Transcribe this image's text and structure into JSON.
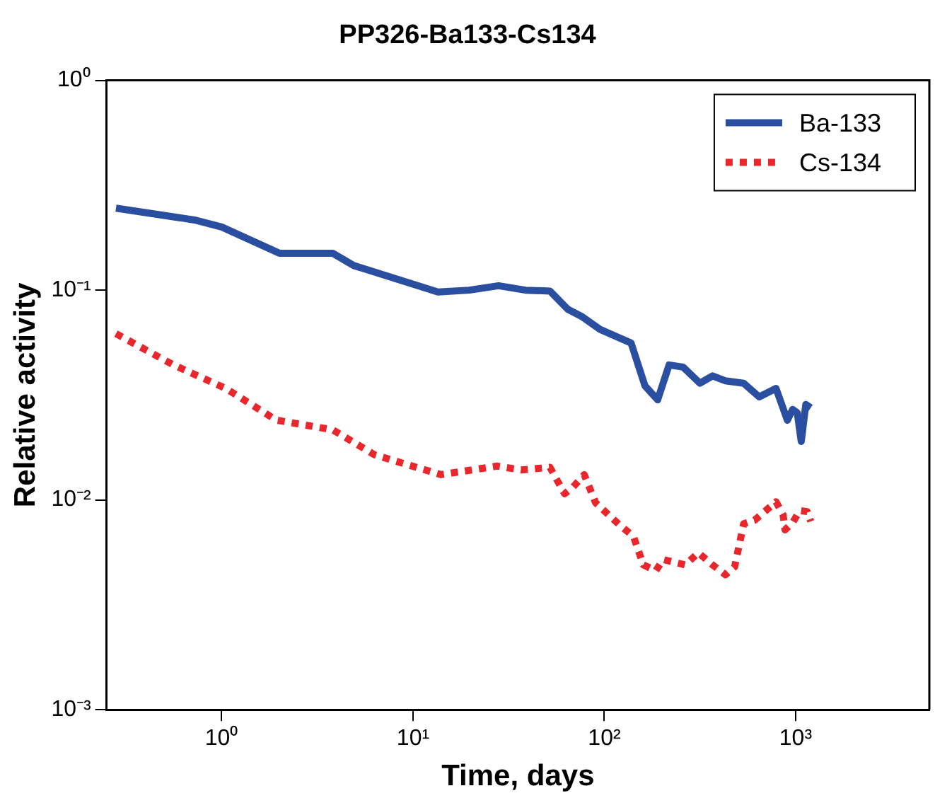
{
  "chart_data": {
    "type": "line",
    "title": "PP326-Ba133-Cs134",
    "xlabel": "Time, days",
    "ylabel": "Relative activity",
    "log": "xy",
    "grid": false,
    "legend": "top right",
    "marker": "none",
    "xlim": [
      0.25,
      5000
    ],
    "ylim": [
      0.001,
      1
    ],
    "xticks": [
      {
        "value": 1,
        "label": "10⁰"
      },
      {
        "value": 10,
        "label": "10¹"
      },
      {
        "value": 100,
        "label": "10²"
      },
      {
        "value": 1000,
        "label": "10³"
      }
    ],
    "yticks": [
      {
        "value": 0.001,
        "label": "10⁻³"
      },
      {
        "value": 0.01,
        "label": "10⁻²"
      },
      {
        "value": 0.1,
        "label": "10⁻¹"
      },
      {
        "value": 1,
        "label": "10⁰"
      }
    ],
    "series": [
      {
        "name": "Ba-133",
        "color": "#2b4fa0",
        "line_style": "solid",
        "x": [
          0.28,
          0.72,
          1.0,
          2.0,
          3.8,
          4.9,
          13.5,
          19.7,
          28,
          38.7,
          52,
          64.5,
          76,
          95,
          138,
          163,
          190,
          218,
          258,
          316,
          368,
          428,
          535,
          645,
          790,
          905,
          965,
          1020,
          1070,
          1130,
          1200
        ],
        "values": [
          0.246,
          0.216,
          0.2,
          0.15,
          0.15,
          0.131,
          0.098,
          0.1,
          0.105,
          0.1,
          0.099,
          0.081,
          0.075,
          0.065,
          0.056,
          0.035,
          0.03,
          0.044,
          0.043,
          0.036,
          0.039,
          0.037,
          0.036,
          0.031,
          0.034,
          0.024,
          0.027,
          0.026,
          0.019,
          0.0285,
          0.0275
        ]
      },
      {
        "name": "Cs-134",
        "color": "#e8262b",
        "line_style": "dotted",
        "x": [
          0.28,
          0.56,
          1.05,
          1.93,
          3.8,
          6.3,
          14,
          27.6,
          36.7,
          52,
          62,
          68.5,
          78.5,
          90,
          120,
          142,
          160,
          186,
          203,
          265,
          310,
          368,
          430,
          480,
          535,
          610,
          790,
          860,
          880,
          965,
          1050,
          1150,
          1200
        ],
        "values": [
          0.062,
          0.044,
          0.034,
          0.024,
          0.0216,
          0.0164,
          0.0132,
          0.0145,
          0.0139,
          0.0143,
          0.0107,
          0.0115,
          0.0132,
          0.0097,
          0.0076,
          0.0067,
          0.0049,
          0.0046,
          0.0052,
          0.0049,
          0.0056,
          0.0049,
          0.0044,
          0.0048,
          0.0077,
          0.008,
          0.0098,
          0.0085,
          0.0072,
          0.0078,
          0.0089,
          0.0088,
          0.0079
        ]
      }
    ]
  }
}
